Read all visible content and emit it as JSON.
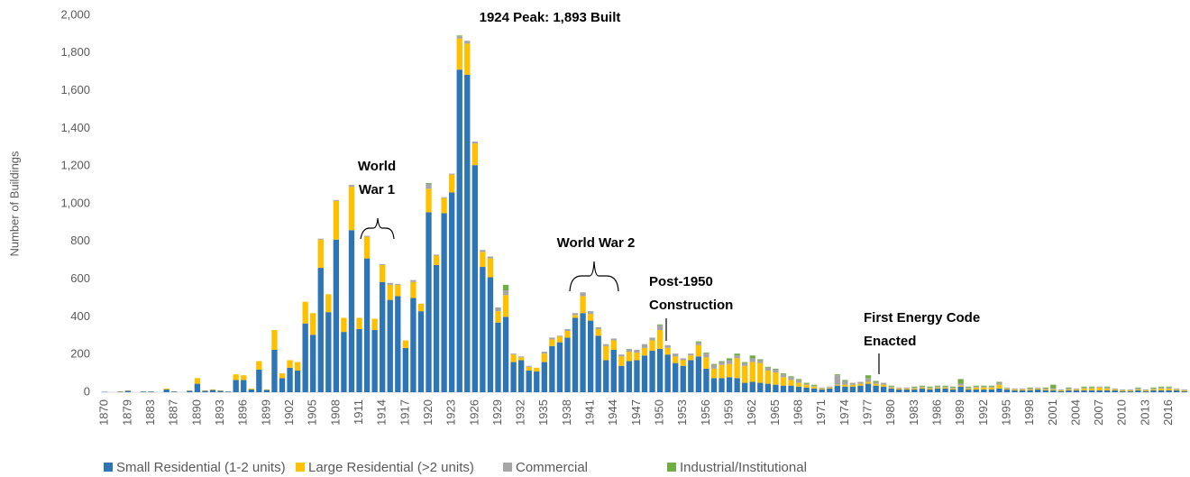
{
  "chart_data": {
    "type": "stacked_bar",
    "y_label": "Number of Buildings",
    "ylim": [
      0,
      2000
    ],
    "yticks": [
      0,
      200,
      400,
      600,
      800,
      {
        "value": 1000,
        "label": "1,000"
      },
      {
        "value": 1200,
        "label": "1,200"
      },
      {
        "value": 1400,
        "label": "1,400"
      },
      {
        "value": 1600,
        "label": "1,600"
      },
      {
        "value": 1800,
        "label": "1,800"
      },
      {
        "value": 2000,
        "label": "2,000"
      }
    ],
    "legend": "bottom-left",
    "categories": [
      "1870",
      null,
      null,
      "1879",
      null,
      null,
      "1883",
      null,
      null,
      "1887",
      null,
      null,
      "1890",
      null,
      null,
      "1893",
      null,
      null,
      "1896",
      null,
      null,
      "1899",
      null,
      null,
      "1902",
      null,
      null,
      "1905",
      null,
      null,
      "1908",
      null,
      null,
      "1911",
      null,
      null,
      "1914",
      null,
      null,
      "1917",
      null,
      null,
      "1920",
      null,
      null,
      "1923",
      null,
      null,
      "1926",
      null,
      null,
      "1929",
      null,
      null,
      "1932",
      null,
      null,
      "1935",
      null,
      null,
      "1938",
      null,
      null,
      "1941",
      null,
      null,
      "1944",
      null,
      null,
      "1947",
      null,
      null,
      "1950",
      null,
      null,
      "1953",
      null,
      null,
      "1956",
      null,
      null,
      "1959",
      null,
      null,
      "1962",
      null,
      null,
      "1965",
      null,
      null,
      "1968",
      null,
      null,
      "1971",
      null,
      null,
      "1974",
      null,
      null,
      "1977",
      null,
      null,
      "1980",
      null,
      null,
      "1983",
      null,
      null,
      "1986",
      null,
      null,
      "1989",
      null,
      null,
      "1992",
      null,
      null,
      "1995",
      null,
      null,
      "1998",
      null,
      null,
      "2001",
      null,
      null,
      "2004",
      null,
      null,
      "2007",
      null,
      null,
      "2010",
      null,
      null,
      "2013",
      null,
      null,
      "2016",
      null,
      null
    ],
    "series": [
      {
        "name": "Small Residential (1-2 units)",
        "color": "#2e75b6",
        "values": [
          2,
          0,
          3,
          8,
          0,
          4,
          4,
          0,
          15,
          4,
          0,
          8,
          45,
          8,
          12,
          8,
          4,
          65,
          65,
          15,
          120,
          12,
          225,
          75,
          130,
          115,
          365,
          305,
          660,
          425,
          810,
          320,
          860,
          335,
          710,
          330,
          585,
          490,
          510,
          235,
          500,
          430,
          955,
          675,
          950,
          1060,
          1712,
          1685,
          1205,
          665,
          610,
          370,
          400,
          160,
          170,
          115,
          110,
          160,
          245,
          265,
          290,
          395,
          420,
          380,
          300,
          170,
          225,
          140,
          165,
          170,
          195,
          220,
          230,
          200,
          155,
          140,
          170,
          190,
          125,
          75,
          75,
          80,
          75,
          50,
          55,
          50,
          45,
          40,
          35,
          35,
          30,
          25,
          20,
          15,
          20,
          35,
          30,
          30,
          35,
          45,
          35,
          30,
          20,
          15,
          15,
          15,
          20,
          15,
          20,
          20,
          15,
          30,
          15,
          15,
          15,
          15,
          20,
          15,
          10,
          10,
          10,
          15,
          10,
          10,
          5,
          10,
          10,
          10,
          10,
          10,
          10,
          10,
          5,
          5,
          10,
          5,
          10,
          10,
          10,
          10,
          5
        ]
      },
      {
        "name": "Large Residential (>2 units)",
        "color": "#ffc000",
        "values": [
          0,
          0,
          2,
          2,
          0,
          1,
          1,
          0,
          5,
          1,
          0,
          2,
          30,
          2,
          3,
          2,
          1,
          30,
          25,
          5,
          45,
          3,
          105,
          25,
          40,
          45,
          115,
          115,
          150,
          95,
          205,
          75,
          230,
          60,
          115,
          60,
          90,
          80,
          60,
          40,
          85,
          40,
          125,
          50,
          80,
          95,
          165,
          165,
          115,
          80,
          100,
          60,
          115,
          40,
          15,
          20,
          20,
          45,
          35,
          30,
          35,
          15,
          90,
          35,
          35,
          75,
          50,
          50,
          50,
          40,
          40,
          55,
          100,
          35,
          35,
          30,
          25,
          60,
          60,
          50,
          70,
          70,
          105,
          90,
          105,
          105,
          70,
          65,
          45,
          30,
          20,
          15,
          10,
          5,
          5,
          5,
          10,
          10,
          10,
          10,
          10,
          10,
          5,
          5,
          5,
          5,
          5,
          5,
          5,
          5,
          5,
          5,
          5,
          10,
          10,
          10,
          20,
          5,
          5,
          5,
          5,
          5,
          5,
          5,
          5,
          5,
          5,
          10,
          10,
          15,
          10,
          5,
          5,
          5,
          5,
          5,
          5,
          10,
          10,
          5,
          5
        ]
      },
      {
        "name": "Commercial",
        "color": "#a5a5a5",
        "values": [
          0,
          0,
          0,
          0,
          0,
          0,
          0,
          0,
          0,
          0,
          0,
          0,
          0,
          0,
          0,
          0,
          0,
          0,
          0,
          0,
          0,
          0,
          0,
          0,
          0,
          0,
          0,
          0,
          5,
          0,
          5,
          0,
          10,
          0,
          5,
          0,
          5,
          10,
          5,
          0,
          10,
          0,
          25,
          5,
          5,
          5,
          12,
          15,
          10,
          10,
          10,
          20,
          25,
          5,
          5,
          5,
          0,
          10,
          10,
          5,
          10,
          10,
          20,
          15,
          10,
          10,
          10,
          10,
          15,
          15,
          20,
          15,
          25,
          15,
          15,
          10,
          10,
          15,
          20,
          20,
          15,
          20,
          15,
          15,
          20,
          15,
          15,
          15,
          15,
          15,
          15,
          5,
          5,
          5,
          5,
          50,
          20,
          10,
          10,
          20,
          10,
          10,
          5,
          5,
          5,
          5,
          5,
          5,
          5,
          5,
          5,
          10,
          5,
          5,
          5,
          5,
          10,
          5,
          5,
          5,
          5,
          5,
          5,
          5,
          5,
          5,
          5,
          5,
          5,
          5,
          5,
          5,
          5,
          5,
          5,
          5,
          5,
          5,
          5,
          5,
          5
        ]
      },
      {
        "name": "Industrial/Institutional",
        "color": "#70ad47",
        "values": [
          0,
          0,
          0,
          0,
          0,
          0,
          0,
          0,
          0,
          0,
          0,
          0,
          0,
          0,
          0,
          0,
          0,
          0,
          0,
          0,
          0,
          0,
          0,
          0,
          0,
          0,
          0,
          0,
          0,
          0,
          0,
          0,
          0,
          0,
          0,
          0,
          0,
          0,
          0,
          0,
          0,
          0,
          5,
          0,
          0,
          0,
          4,
          0,
          0,
          0,
          0,
          0,
          30,
          0,
          0,
          0,
          0,
          0,
          0,
          0,
          0,
          0,
          0,
          0,
          0,
          0,
          0,
          0,
          0,
          0,
          0,
          0,
          5,
          0,
          0,
          0,
          0,
          5,
          5,
          5,
          5,
          10,
          10,
          5,
          15,
          5,
          5,
          5,
          5,
          5,
          5,
          5,
          5,
          0,
          0,
          5,
          5,
          0,
          0,
          15,
          5,
          0,
          5,
          0,
          0,
          5,
          5,
          5,
          5,
          5,
          5,
          25,
          5,
          5,
          5,
          5,
          5,
          0,
          0,
          0,
          5,
          0,
          5,
          20,
          0,
          5,
          0,
          5,
          5,
          0,
          5,
          0,
          0,
          0,
          5,
          0,
          5,
          5,
          5,
          0,
          0
        ]
      }
    ],
    "annotations": [
      {
        "lines": [
          "1924 Peak: 1,893 Built"
        ]
      },
      {
        "lines": [
          "World",
          "War 1"
        ]
      },
      {
        "lines": [
          "World War 2"
        ]
      },
      {
        "lines": [
          "Post-1950",
          "Construction"
        ]
      },
      {
        "lines": [
          "First Energy Code",
          "Enacted"
        ]
      }
    ]
  }
}
